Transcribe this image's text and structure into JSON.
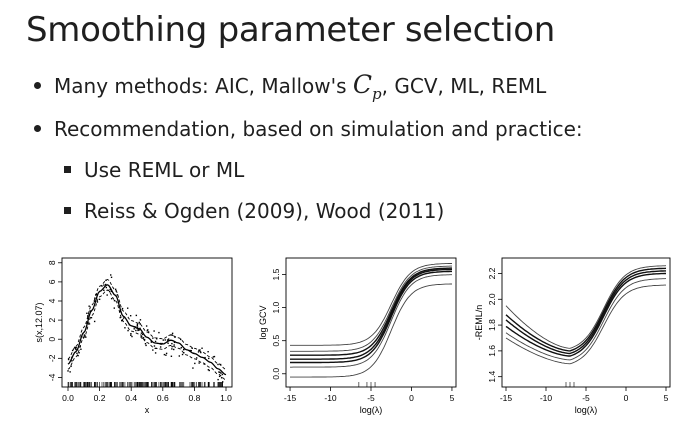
{
  "slide": {
    "title": "Smoothing parameter selection",
    "bullets": [
      {
        "pre": "Many methods: AIC, Mallow's ",
        "math_main": "C",
        "math_sub": "p",
        "post": ", GCV, ML, REML"
      },
      {
        "text": "Recommendation, based on simulation and practice:"
      }
    ],
    "subbullets": [
      {
        "text": "Use REML or ML"
      },
      {
        "text": "Reiss & Ogden (2009), Wood (2011)"
      }
    ]
  },
  "chart_data": [
    {
      "type": "scatter",
      "ylabel": "s(x,12.07)",
      "xlabel": "x",
      "xticks": [
        "0.0",
        "0.2",
        "0.4",
        "0.6",
        "0.8",
        "1.0"
      ],
      "yticks": [
        "-4",
        "-2",
        "0",
        "2",
        "4",
        "6",
        "8"
      ],
      "xlim": [
        0,
        1
      ],
      "ylim": [
        -5,
        8.5
      ],
      "fit_x": [
        0,
        0.05,
        0.1,
        0.15,
        0.2,
        0.25,
        0.3,
        0.35,
        0.4,
        0.45,
        0.5,
        0.55,
        0.6,
        0.65,
        0.7,
        0.75,
        0.8,
        0.85,
        0.9,
        0.95,
        1.0
      ],
      "fit_y": [
        -2.6,
        -1.3,
        0.7,
        3.0,
        5.0,
        5.7,
        4.6,
        2.4,
        1.4,
        1.1,
        0.2,
        -0.4,
        -0.5,
        -0.1,
        -0.4,
        -1.1,
        -1.5,
        -1.9,
        -2.4,
        -3.1,
        -3.7
      ]
    },
    {
      "type": "line",
      "ylabel": "log GCV",
      "xlabel": "log(λ)",
      "xticks": [
        "-15",
        "-10",
        "-5",
        "0",
        "5"
      ],
      "yticks": [
        "0.0",
        "0.5",
        "1.0",
        "1.5"
      ],
      "xlim": [
        -15.5,
        5.5
      ],
      "ylim": [
        -0.2,
        1.75
      ],
      "curves": [
        {
          "low": -0.05,
          "high": 1.36
        },
        {
          "low": 0.1,
          "high": 1.5
        },
        {
          "low": 0.17,
          "high": 1.55
        },
        {
          "low": 0.22,
          "high": 1.58
        },
        {
          "low": 0.28,
          "high": 1.6
        },
        {
          "low": 0.34,
          "high": 1.63
        },
        {
          "low": 0.43,
          "high": 1.67
        }
      ]
    },
    {
      "type": "line",
      "ylabel": "-REML/n",
      "xlabel": "log(λ)",
      "xticks": [
        "-15",
        "-10",
        "-5",
        "0",
        "5"
      ],
      "yticks": [
        "1.4",
        "1.6",
        "1.8",
        "2.0",
        "2.2"
      ],
      "xlim": [
        -15.5,
        5.5
      ],
      "ylim": [
        1.32,
        2.32
      ],
      "curves": [
        {
          "start": 1.95,
          "min": 1.62,
          "end": 2.26
        },
        {
          "start": 1.88,
          "min": 1.6,
          "end": 2.24
        },
        {
          "start": 1.84,
          "min": 1.58,
          "end": 2.22
        },
        {
          "start": 1.79,
          "min": 1.56,
          "end": 2.2
        },
        {
          "start": 1.74,
          "min": 1.53,
          "end": 2.16
        },
        {
          "start": 1.7,
          "min": 1.5,
          "end": 2.11
        }
      ]
    }
  ]
}
